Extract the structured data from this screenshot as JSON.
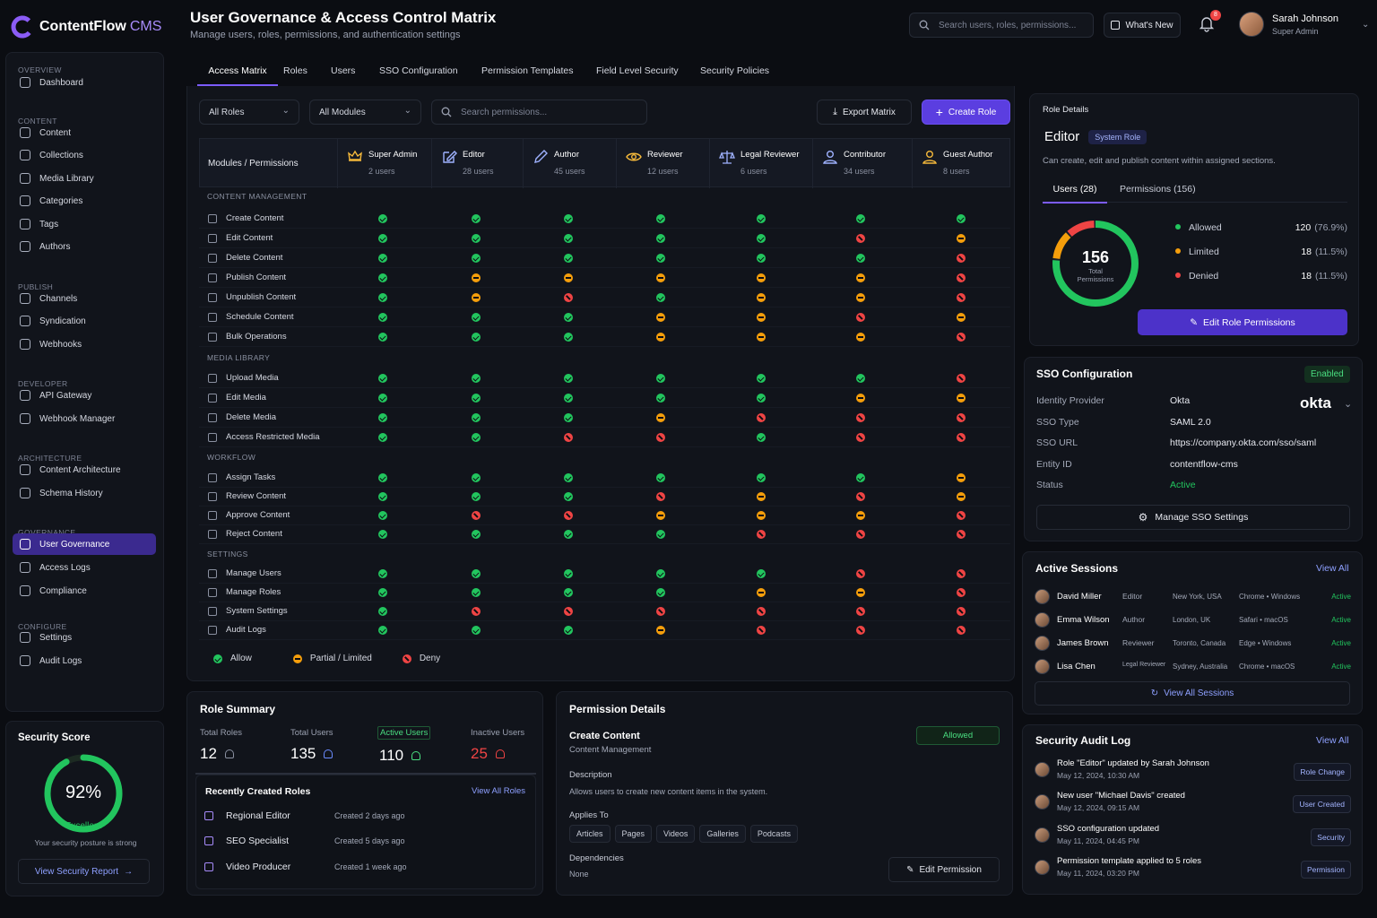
{
  "app": {
    "name": "ContentFlow",
    "suffix": "CMS"
  },
  "page": {
    "title": "User Governance & Access Control Matrix",
    "subtitle": "Manage users, roles, permissions, and authentication settings"
  },
  "header": {
    "search_placeholder": "Search users, roles, permissions...",
    "whats_new": "What's New",
    "notifications": "8",
    "user_name": "Sarah Johnson",
    "user_role": "Super Admin"
  },
  "sidebar": {
    "sections": [
      {
        "title": "OVERVIEW",
        "items": [
          "Dashboard"
        ]
      },
      {
        "title": "CONTENT",
        "items": [
          "Content",
          "Collections",
          "Media Library",
          "Categories",
          "Tags",
          "Authors"
        ]
      },
      {
        "title": "PUBLISH",
        "items": [
          "Channels",
          "Syndication",
          "Webhooks"
        ]
      },
      {
        "title": "DEVELOPER",
        "items": [
          "API Gateway",
          "Webhook Manager"
        ]
      },
      {
        "title": "ARCHITECTURE",
        "items": [
          "Content Architecture",
          "Schema History"
        ]
      },
      {
        "title": "GOVERNANCE",
        "items": [
          "User Governance",
          "Access Logs",
          "Compliance"
        ]
      },
      {
        "title": "CONFIGURE",
        "items": [
          "Settings",
          "Audit Logs"
        ]
      }
    ],
    "active": "User Governance"
  },
  "security_score": {
    "title": "Security Score",
    "value": "92%",
    "fraction": 0.92,
    "rating": "Excellent",
    "note": "Your security posture is strong",
    "link": "View Security Report"
  },
  "tabs": [
    "Access Matrix",
    "Roles",
    "Users",
    "SSO Configuration",
    "Permission Templates",
    "Field Level Security",
    "Security Policies"
  ],
  "toolbar": {
    "roles_filter": "All Roles",
    "modules_filter": "All Modules",
    "search_placeholder": "Search permissions...",
    "export": "Export Matrix",
    "create": "Create Role"
  },
  "matrix": {
    "corner": "Modules / Permissions",
    "roles": [
      {
        "name": "Super Admin",
        "users": "2 users",
        "icon": "crown-icon"
      },
      {
        "name": "Editor",
        "users": "28 users",
        "icon": "pencil-square-icon"
      },
      {
        "name": "Author",
        "users": "45 users",
        "icon": "pen-icon"
      },
      {
        "name": "Reviewer",
        "users": "12 users",
        "icon": "eye-icon"
      },
      {
        "name": "Legal Reviewer",
        "users": "6 users",
        "icon": "scale-icon"
      },
      {
        "name": "Contributor",
        "users": "34 users",
        "icon": "person-icon"
      },
      {
        "name": "Guest Author",
        "users": "8 users",
        "icon": "person-outline-icon"
      }
    ],
    "groups": [
      {
        "name": "CONTENT MANAGEMENT",
        "rows": [
          {
            "label": "Create Content",
            "v": "aaaaaaa"
          },
          {
            "label": "Edit Content",
            "v": "aaaaadp"
          },
          {
            "label": "Delete Content",
            "v": "aaaaaad"
          },
          {
            "label": "Publish Content",
            "v": "apppppd"
          },
          {
            "label": "Unpublish Content",
            "v": "apdappd"
          },
          {
            "label": "Schedule Content",
            "v": "aaappdp"
          },
          {
            "label": "Bulk Operations",
            "v": "aaapppd"
          }
        ]
      },
      {
        "name": "MEDIA LIBRARY",
        "rows": [
          {
            "label": "Upload Media",
            "v": "aaaaaad"
          },
          {
            "label": "Edit Media",
            "v": "aaaaapp"
          },
          {
            "label": "Delete Media",
            "v": "aaapddd"
          },
          {
            "label": "Access Restricted Media",
            "v": "aaddadd"
          }
        ]
      },
      {
        "name": "WORKFLOW",
        "rows": [
          {
            "label": "Assign Tasks",
            "v": "aaaaaap"
          },
          {
            "label": "Review Content",
            "v": "aaadpdp"
          },
          {
            "label": "Approve Content",
            "v": "addpppd"
          },
          {
            "label": "Reject Content",
            "v": "aaaaddd"
          }
        ]
      },
      {
        "name": "SETTINGS",
        "rows": [
          {
            "label": "Manage Users",
            "v": "aaaaadd"
          },
          {
            "label": "Manage Roles",
            "v": "aaaappd"
          },
          {
            "label": "System Settings",
            "v": "adddddd"
          },
          {
            "label": "Audit Logs",
            "v": "aaapddd"
          }
        ]
      }
    ],
    "legend": {
      "allow": "Allow",
      "partial": "Partial / Limited",
      "deny": "Deny"
    }
  },
  "role_details": {
    "heading": "Role Details",
    "name": "Editor",
    "badge": "System Role",
    "description": "Can create, edit and publish content within assigned sections.",
    "tab_users": "Users (28)",
    "tab_permissions": "Permissions (156)",
    "total": "156",
    "total_label_1": "Total",
    "total_label_2": "Permissions",
    "stats": [
      {
        "label": "Allowed",
        "count": "120",
        "pct": "(76.9%)",
        "value": 120,
        "color": "#22c55e"
      },
      {
        "label": "Limited",
        "count": "18",
        "pct": "(11.5%)",
        "value": 18,
        "color": "#f59e0b"
      },
      {
        "label": "Denied",
        "count": "18",
        "pct": "(11.5%)",
        "value": 18,
        "color": "#ef4444"
      }
    ],
    "edit_button": "Edit Role Permissions"
  },
  "sso": {
    "title": "SSO Configuration",
    "status_badge": "Enabled",
    "fields": [
      {
        "k": "Identity Provider",
        "v": "Okta"
      },
      {
        "k": "SSO Type",
        "v": "SAML 2.0"
      },
      {
        "k": "SSO URL",
        "v": "https://company.okta.com/sso/saml"
      },
      {
        "k": "Entity ID",
        "v": "contentflow-cms"
      },
      {
        "k": "Status",
        "v": "Active"
      }
    ],
    "provider_logo": "okta",
    "manage": "Manage SSO Settings"
  },
  "sessions": {
    "title": "Active Sessions",
    "view_all": "View All",
    "rows": [
      {
        "name": "David Miller",
        "role": "Editor",
        "loc": "New York, USA",
        "device": "Chrome • Windows",
        "status": "Active"
      },
      {
        "name": "Emma Wilson",
        "role": "Author",
        "loc": "London, UK",
        "device": "Safari • macOS",
        "status": "Active"
      },
      {
        "name": "James Brown",
        "role": "Reviewer",
        "loc": "Toronto, Canada",
        "device": "Edge • Windows",
        "status": "Active"
      },
      {
        "name": "Lisa Chen",
        "role": "Legal Reviewer",
        "loc": "Sydney, Australia",
        "device": "Chrome • macOS",
        "status": "Active"
      }
    ],
    "view_all_sessions": "View All Sessions"
  },
  "audit": {
    "title": "Security Audit Log",
    "view_all": "View All",
    "rows": [
      {
        "text": "Role \"Editor\" updated by Sarah Johnson",
        "time": "May 12, 2024, 10:30 AM",
        "tag": "Role Change"
      },
      {
        "text": "New user \"Michael Davis\" created",
        "time": "May 12, 2024, 09:15 AM",
        "tag": "User Created"
      },
      {
        "text": "SSO configuration updated",
        "time": "May 11, 2024, 04:45 PM",
        "tag": "Security"
      },
      {
        "text": "Permission template applied to 5 roles",
        "time": "May 11, 2024, 03:20 PM",
        "tag": "Permission"
      }
    ]
  },
  "role_summary": {
    "title": "Role Summary",
    "stats": [
      {
        "label": "Total Roles",
        "value": "12"
      },
      {
        "label": "Total Users",
        "value": "135"
      },
      {
        "label": "Active Users",
        "value": "110"
      },
      {
        "label": "Inactive Users",
        "value": "25"
      }
    ],
    "recent_title": "Recently Created Roles",
    "view_all": "View All Roles",
    "recent": [
      {
        "name": "Regional Editor",
        "created": "Created 2 days ago"
      },
      {
        "name": "SEO Specialist",
        "created": "Created 5 days ago"
      },
      {
        "name": "Video Producer",
        "created": "Created 1 week ago"
      }
    ]
  },
  "permission_details": {
    "title": "Permission Details",
    "name": "Create Content",
    "module": "Content Management",
    "status": "Allowed",
    "desc_label": "Description",
    "desc": "Allows users to create new content items in the system.",
    "applies_label": "Applies To",
    "applies": [
      "Articles",
      "Pages",
      "Videos",
      "Galleries",
      "Podcasts"
    ],
    "deps_label": "Dependencies",
    "deps": "None",
    "edit": "Edit Permission"
  }
}
